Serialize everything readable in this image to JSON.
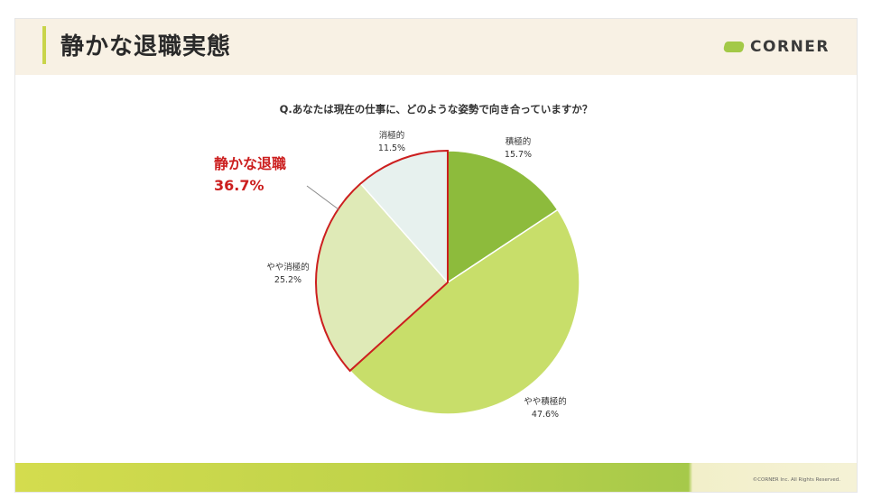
{
  "header": {
    "title": "静かな退職実態",
    "brand": "CORNER"
  },
  "footer": {
    "copyright": "©CORNER Inc. All Rights Reserved."
  },
  "chart_data": {
    "type": "pie",
    "title": "Q.あなたは現在の仕事に、どのような姿勢で向き合っていますか？",
    "slices": [
      {
        "label": "積極的",
        "value": 15.7,
        "display": "15.7%",
        "color": "#8dbb3c"
      },
      {
        "label": "やや積極的",
        "value": 47.6,
        "display": "47.6%",
        "color": "#c8de6a"
      },
      {
        "label": "やや消極的",
        "value": 25.2,
        "display": "25.2%",
        "color": "#dfeab7"
      },
      {
        "label": "消極的",
        "value": 11.5,
        "display": "11.5%",
        "color": "#e7f1ee"
      }
    ],
    "start_angle": "12 o'clock, clockwise",
    "highlight": {
      "label": "静かな退職",
      "value": "36.7%",
      "color": "#cc1f1f",
      "includes": [
        "やや消極的",
        "消極的"
      ]
    }
  }
}
